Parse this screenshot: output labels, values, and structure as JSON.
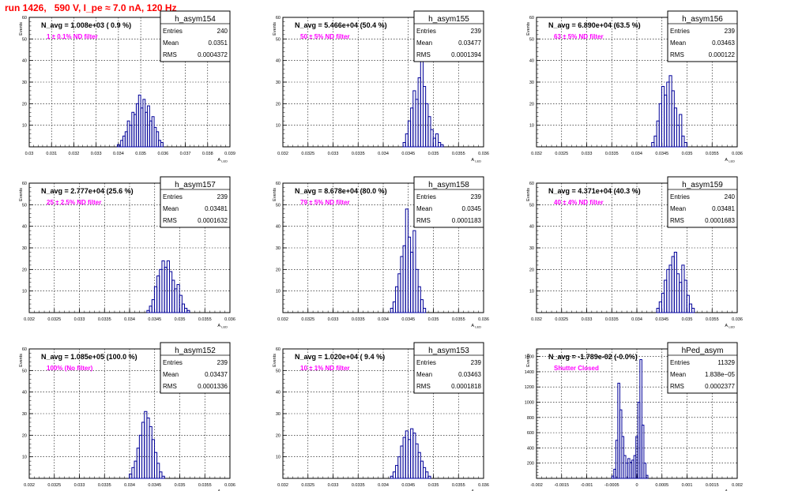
{
  "figure": {
    "title": "run 1426,   590 V, I_pe ≈ 7.0 nA, 120 Hz",
    "label_color": "#ff00ff",
    "hist_color": "#000099",
    "title_color": "#ff0000"
  },
  "chart_data": [
    {
      "type": "histogram",
      "name": "h_asym154",
      "navg": "N_avg = 1.008e+03 ( 0.9 %)",
      "filter": "1 ± 0.1% ND filter",
      "stats": {
        "entries": "240",
        "mean": "0.0351",
        "rms": "0.0004372"
      },
      "stat_labels": [
        "Entries",
        "Mean",
        "RMS"
      ],
      "xlabel": "A_LED",
      "ylabel": "Events",
      "xlim": [
        0.03,
        0.039
      ],
      "ylim": [
        0,
        60
      ],
      "xticks": [
        "0.03",
        "0.031",
        "0.032",
        "0.033",
        "0.034",
        "0.035",
        "0.036",
        "0.037",
        "0.038",
        "0.039"
      ],
      "yticks": [
        "0",
        "10",
        "20",
        "30",
        "40",
        "50",
        "60"
      ],
      "bins": [
        [
          0.034,
          1
        ],
        [
          0.03415,
          3
        ],
        [
          0.03425,
          5
        ],
        [
          0.03435,
          7
        ],
        [
          0.03445,
          12
        ],
        [
          0.03455,
          10
        ],
        [
          0.03465,
          16
        ],
        [
          0.03475,
          15
        ],
        [
          0.03485,
          20
        ],
        [
          0.03495,
          24
        ],
        [
          0.03505,
          18
        ],
        [
          0.03515,
          22
        ],
        [
          0.03525,
          16
        ],
        [
          0.03535,
          19
        ],
        [
          0.03545,
          12
        ],
        [
          0.03555,
          14
        ],
        [
          0.03565,
          9
        ],
        [
          0.03575,
          7
        ],
        [
          0.03585,
          3
        ],
        [
          0.03595,
          2
        ]
      ]
    },
    {
      "type": "histogram",
      "name": "h_asym155",
      "navg": "N_avg = 5.466e+04 (50.4 %)",
      "filter": "50 ± 5% ND filter",
      "stats": {
        "entries": "239",
        "mean": "0.03477",
        "rms": "0.0001394"
      },
      "stat_labels": [
        "Entries",
        "Mean",
        "RMS"
      ],
      "xlabel": "A_LED",
      "ylabel": "Events",
      "xlim": [
        0.032,
        0.036
      ],
      "ylim": [
        0,
        60
      ],
      "xticks": [
        "0.032",
        "0.0325",
        "0.033",
        "0.0335",
        "0.034",
        "0.0345",
        "0.035",
        "0.0355",
        "0.036"
      ],
      "yticks": [
        "0",
        "10",
        "20",
        "30",
        "40",
        "50",
        "60"
      ],
      "bins": [
        [
          0.03442,
          2
        ],
        [
          0.03447,
          6
        ],
        [
          0.03452,
          12
        ],
        [
          0.03457,
          18
        ],
        [
          0.03462,
          26
        ],
        [
          0.03467,
          22
        ],
        [
          0.03472,
          32
        ],
        [
          0.03477,
          40
        ],
        [
          0.03482,
          28
        ],
        [
          0.03487,
          20
        ],
        [
          0.03492,
          14
        ],
        [
          0.03497,
          8
        ],
        [
          0.03502,
          4
        ],
        [
          0.03507,
          6
        ],
        [
          0.03512,
          2
        ],
        [
          0.03517,
          1
        ]
      ]
    },
    {
      "type": "histogram",
      "name": "h_asym156",
      "navg": "N_avg = 6.890e+04 (63.5 %)",
      "filter": "63 ± 5% ND filter",
      "stats": {
        "entries": "239",
        "mean": "0.03463",
        "rms": "0.000122"
      },
      "stat_labels": [
        "Entries",
        "Mean",
        "RMS"
      ],
      "xlabel": "A_LED",
      "ylabel": "Events",
      "xlim": [
        0.032,
        0.036
      ],
      "ylim": [
        0,
        60
      ],
      "xticks": [
        "0.032",
        "0.0325",
        "0.033",
        "0.0335",
        "0.034",
        "0.0345",
        "0.035",
        "0.0355",
        "0.036"
      ],
      "yticks": [
        "0",
        "10",
        "20",
        "30",
        "40",
        "50",
        "60"
      ],
      "bins": [
        [
          0.03432,
          2
        ],
        [
          0.03437,
          5
        ],
        [
          0.03442,
          12
        ],
        [
          0.03447,
          20
        ],
        [
          0.03452,
          28
        ],
        [
          0.03457,
          24
        ],
        [
          0.03462,
          30
        ],
        [
          0.03467,
          33
        ],
        [
          0.03472,
          26
        ],
        [
          0.03477,
          18
        ],
        [
          0.03482,
          10
        ],
        [
          0.03487,
          15
        ],
        [
          0.03492,
          5
        ],
        [
          0.03497,
          2
        ]
      ]
    },
    {
      "type": "histogram",
      "name": "h_asym157",
      "navg": "N_avg = 2.777e+04 (25.6 %)",
      "filter": "25 ± 2.5% ND filter",
      "stats": {
        "entries": "239",
        "mean": "0.03481",
        "rms": "0.0001632"
      },
      "stat_labels": [
        "Entries",
        "Mean",
        "RMS"
      ],
      "xlabel": "A_LED",
      "ylabel": "Events",
      "xlim": [
        0.032,
        0.036
      ],
      "ylim": [
        0,
        60
      ],
      "xticks": [
        "0.032",
        "0.0325",
        "0.033",
        "0.0335",
        "0.034",
        "0.0345",
        "0.035",
        "0.0355",
        "0.036"
      ],
      "yticks": [
        "0",
        "10",
        "20",
        "30",
        "40",
        "50",
        "60"
      ],
      "bins": [
        [
          0.03437,
          1
        ],
        [
          0.03442,
          3
        ],
        [
          0.03447,
          6
        ],
        [
          0.03452,
          12
        ],
        [
          0.03457,
          17
        ],
        [
          0.03462,
          20
        ],
        [
          0.03467,
          24
        ],
        [
          0.03472,
          21
        ],
        [
          0.03477,
          24
        ],
        [
          0.03482,
          19
        ],
        [
          0.03487,
          15
        ],
        [
          0.03492,
          11
        ],
        [
          0.03497,
          13
        ],
        [
          0.03502,
          8
        ],
        [
          0.03507,
          4
        ],
        [
          0.03512,
          2
        ],
        [
          0.03517,
          1
        ]
      ]
    },
    {
      "type": "histogram",
      "name": "h_asym158",
      "navg": "N_avg = 8.678e+04 (80.0 %)",
      "filter": "79 ± 5% ND filter",
      "stats": {
        "entries": "239",
        "mean": "0.0345",
        "rms": "0.0001183"
      },
      "stat_labels": [
        "Entries",
        "Mean",
        "RMS"
      ],
      "xlabel": "A_LED",
      "ylabel": "Events",
      "xlim": [
        0.032,
        0.036
      ],
      "ylim": [
        0,
        60
      ],
      "xticks": [
        "0.032",
        "0.0325",
        "0.033",
        "0.0335",
        "0.034",
        "0.0345",
        "0.035",
        "0.0355",
        "0.036"
      ],
      "yticks": [
        "0",
        "10",
        "20",
        "30",
        "40",
        "50",
        "60"
      ],
      "bins": [
        [
          0.03417,
          2
        ],
        [
          0.03422,
          5
        ],
        [
          0.03427,
          12
        ],
        [
          0.03432,
          18
        ],
        [
          0.03437,
          26
        ],
        [
          0.03442,
          31
        ],
        [
          0.03447,
          48
        ],
        [
          0.03452,
          35
        ],
        [
          0.03457,
          28
        ],
        [
          0.03462,
          38
        ],
        [
          0.03467,
          20
        ],
        [
          0.03472,
          12
        ],
        [
          0.03477,
          6
        ],
        [
          0.03482,
          2
        ]
      ]
    },
    {
      "type": "histogram",
      "name": "h_asym159",
      "navg": "N_avg = 4.371e+04 (40.3 %)",
      "filter": "40 ± 4% ND filter",
      "stats": {
        "entries": "240",
        "mean": "0.03481",
        "rms": "0.0001683"
      },
      "stat_labels": [
        "Entries",
        "Mean",
        "RMS"
      ],
      "xlabel": "A_LED",
      "ylabel": "Events",
      "xlim": [
        0.032,
        0.036
      ],
      "ylim": [
        0,
        60
      ],
      "xticks": [
        "0.032",
        "0.0325",
        "0.033",
        "0.0335",
        "0.034",
        "0.0345",
        "0.035",
        "0.0355",
        "0.036"
      ],
      "yticks": [
        "0",
        "10",
        "20",
        "30",
        "40",
        "50",
        "60"
      ],
      "bins": [
        [
          0.03442,
          2
        ],
        [
          0.03447,
          5
        ],
        [
          0.03452,
          9
        ],
        [
          0.03457,
          15
        ],
        [
          0.03462,
          20
        ],
        [
          0.03467,
          22
        ],
        [
          0.03472,
          26
        ],
        [
          0.03477,
          28
        ],
        [
          0.03482,
          18
        ],
        [
          0.03487,
          14
        ],
        [
          0.03492,
          22
        ],
        [
          0.03497,
          15
        ],
        [
          0.03502,
          8
        ],
        [
          0.03507,
          4
        ],
        [
          0.03512,
          2
        ]
      ]
    },
    {
      "type": "histogram",
      "name": "h_asym152",
      "navg": "N_avg = 1.085e+05 (100.0 %)",
      "filter": "100% (No filter)",
      "stats": {
        "entries": "239",
        "mean": "0.03437",
        "rms": "0.0001336"
      },
      "stat_labels": [
        "Entries",
        "Mean",
        "RMS"
      ],
      "xlabel": "A_LED",
      "ylabel": "Events",
      "xlim": [
        0.032,
        0.036
      ],
      "ylim": [
        0,
        60
      ],
      "xticks": [
        "0.032",
        "0.0325",
        "0.033",
        "0.0335",
        "0.034",
        "0.0345",
        "0.035",
        "0.0355",
        "0.036"
      ],
      "yticks": [
        "0",
        "10",
        "20",
        "30",
        "40",
        "50",
        "60"
      ],
      "bins": [
        [
          0.03402,
          2
        ],
        [
          0.03407,
          5
        ],
        [
          0.03412,
          8
        ],
        [
          0.03417,
          14
        ],
        [
          0.03422,
          20
        ],
        [
          0.03427,
          26
        ],
        [
          0.03432,
          31
        ],
        [
          0.03437,
          28
        ],
        [
          0.03442,
          24
        ],
        [
          0.03447,
          18
        ],
        [
          0.03452,
          12
        ],
        [
          0.03457,
          7
        ],
        [
          0.03462,
          3
        ],
        [
          0.03467,
          1
        ]
      ]
    },
    {
      "type": "histogram",
      "name": "h_asym153",
      "navg": "N_avg = 1.020e+04 ( 9.4 %)",
      "filter": "10 ± 1% ND filter",
      "stats": {
        "entries": "239",
        "mean": "0.03463",
        "rms": "0.0001818"
      },
      "stat_labels": [
        "Entries",
        "Mean",
        "RMS"
      ],
      "xlabel": "A_LED",
      "ylabel": "Events",
      "xlim": [
        0.032,
        0.036
      ],
      "ylim": [
        0,
        60
      ],
      "xticks": [
        "0.032",
        "0.0325",
        "0.033",
        "0.0335",
        "0.034",
        "0.0345",
        "0.035",
        "0.0355",
        "0.036"
      ],
      "yticks": [
        "0",
        "10",
        "20",
        "30",
        "40",
        "50",
        "60"
      ],
      "bins": [
        [
          0.03417,
          1
        ],
        [
          0.03422,
          3
        ],
        [
          0.03427,
          6
        ],
        [
          0.03432,
          10
        ],
        [
          0.03437,
          15
        ],
        [
          0.03442,
          19
        ],
        [
          0.03447,
          22
        ],
        [
          0.03452,
          18
        ],
        [
          0.03457,
          23
        ],
        [
          0.03462,
          21
        ],
        [
          0.03467,
          16
        ],
        [
          0.03472,
          12
        ],
        [
          0.03477,
          8
        ],
        [
          0.03482,
          5
        ],
        [
          0.03487,
          3
        ],
        [
          0.03492,
          1
        ]
      ]
    },
    {
      "type": "histogram",
      "name": "hPed_asym",
      "navg": "N_avg = -1.789e-02 (-0.0%)",
      "filter": "Shutter Closed",
      "stats": {
        "entries": "11329",
        "mean": "1.838e−05",
        "rms": "0.0002377"
      },
      "stat_labels": [
        "Entries",
        "Mean",
        "RMS"
      ],
      "xlabel": "A_LED",
      "ylabel": "Events",
      "xlim": [
        -0.002,
        0.002
      ],
      "ylim": [
        0,
        1700
      ],
      "xticks": [
        "-0.002",
        "-0.0015",
        "-0.001",
        "-0.0005",
        "0",
        "0.0005",
        "0.001",
        "0.0015",
        "0.002"
      ],
      "yticks": [
        "0",
        "200",
        "400",
        "600",
        "800",
        "1000",
        "1200",
        "1400",
        "1600"
      ],
      "bins": [
        [
          -0.00048,
          30
        ],
        [
          -0.00044,
          120
        ],
        [
          -0.0004,
          500
        ],
        [
          -0.00036,
          1250
        ],
        [
          -0.00032,
          900
        ],
        [
          -0.00028,
          550
        ],
        [
          -0.00024,
          300
        ],
        [
          -0.0002,
          200
        ],
        [
          -0.00016,
          260
        ],
        [
          -0.00012,
          210
        ],
        [
          -8e-05,
          240
        ],
        [
          -4e-05,
          300
        ],
        [
          0.0,
          550
        ],
        [
          4e-05,
          1000
        ],
        [
          8e-05,
          1560
        ],
        [
          0.00012,
          700
        ],
        [
          0.00016,
          200
        ],
        [
          0.0002,
          40
        ]
      ]
    }
  ]
}
